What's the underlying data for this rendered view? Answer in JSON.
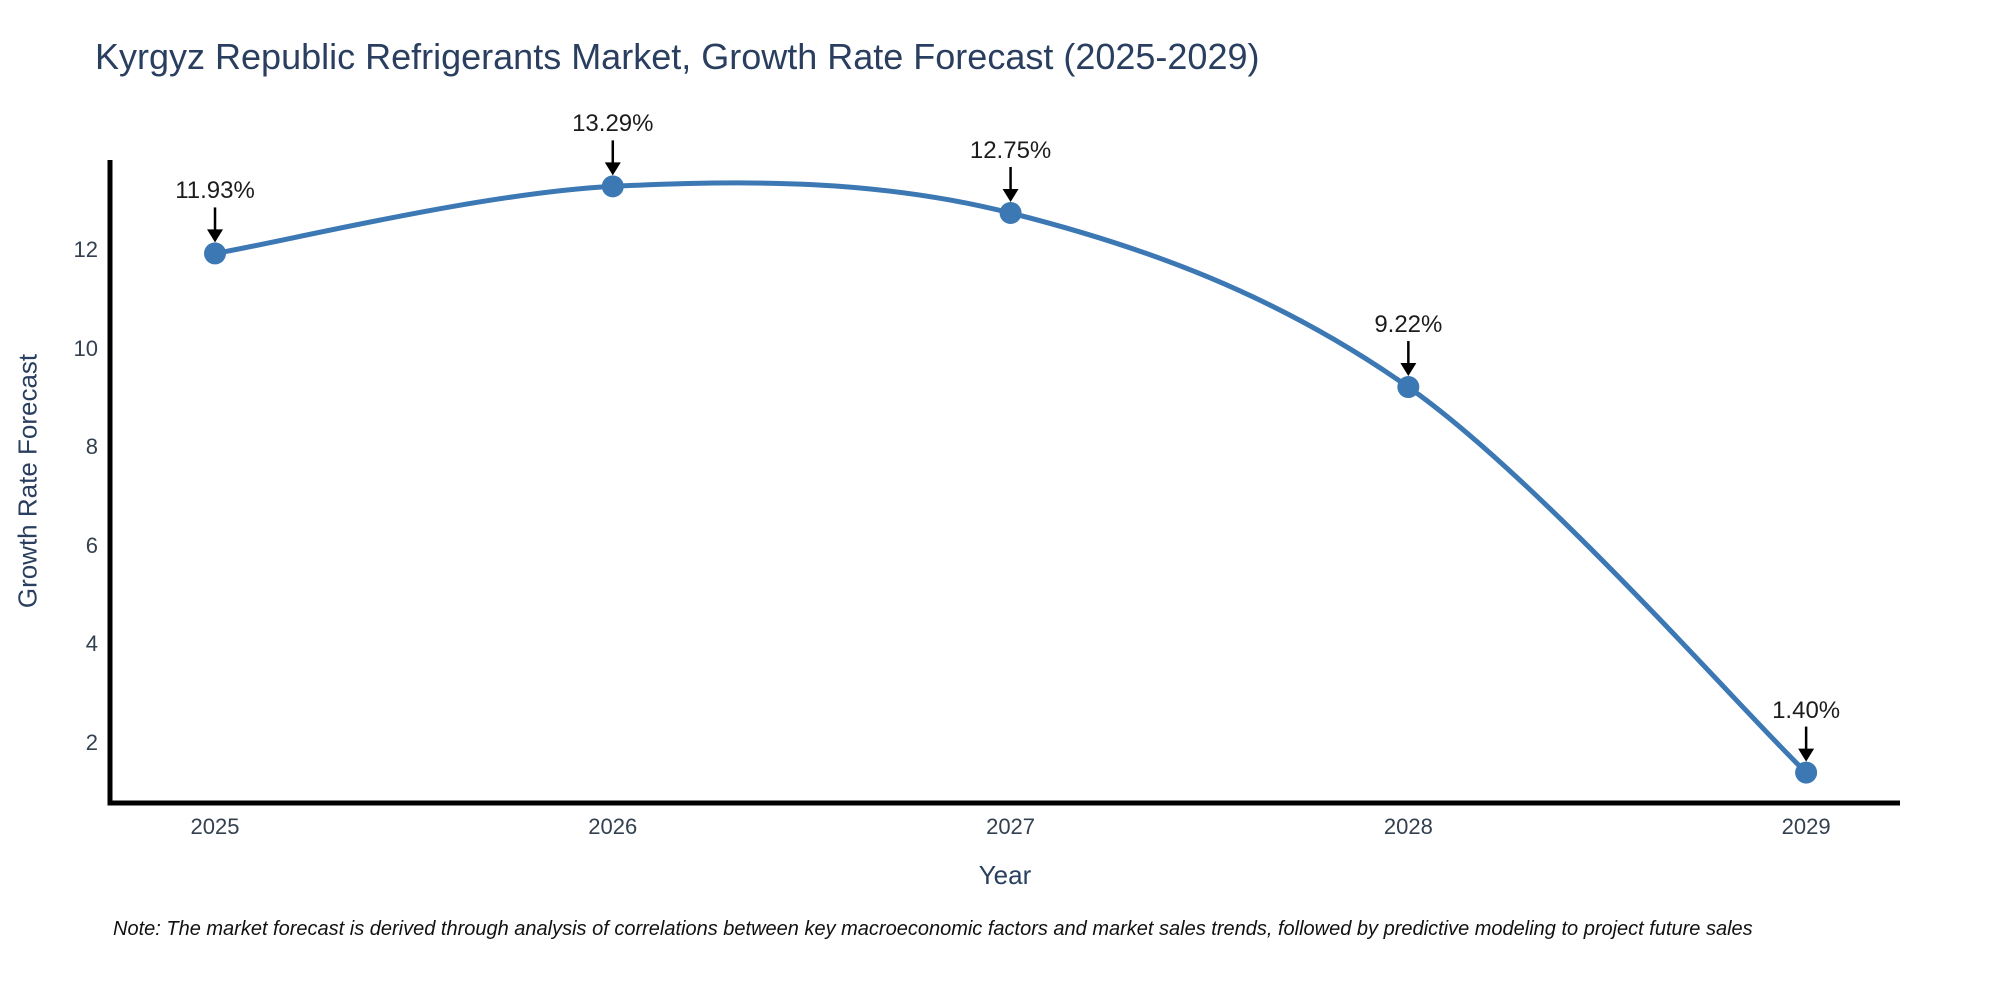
{
  "title": "Kyrgyz Republic Refrigerants Market, Growth Rate Forecast (2025-2029)",
  "note": "Note: The market forecast is derived through analysis of correlations between key macroeconomic factors and market sales trends, followed by predictive modeling to project future sales",
  "colors": {
    "line": "#3c78b4",
    "marker": "#3c78b4",
    "axis_line": "#000000",
    "arrow": "#000000",
    "title_text": "#2a3f5f",
    "axis_title_text": "#2a3f5f",
    "tick_text": "#33404f",
    "annotation_text": "#1c1c1c",
    "background": "#ffffff"
  },
  "chart_data": {
    "type": "line",
    "title": "Kyrgyz Republic Refrigerants Market, Growth Rate Forecast (2025-2029)",
    "xlabel": "Year",
    "ylabel": "Growth Rate Forecast",
    "x": [
      2025,
      2026,
      2027,
      2028,
      2029
    ],
    "y": [
      11.93,
      13.29,
      12.75,
      9.22,
      1.4
    ],
    "point_labels": [
      "11.93%",
      "13.29%",
      "12.75%",
      "9.22%",
      "1.40%"
    ],
    "xticks": [
      2025,
      2026,
      2027,
      2028,
      2029
    ],
    "xtick_labels": [
      "2025",
      "2026",
      "2027",
      "2028",
      "2029"
    ],
    "yticks": [
      2,
      4,
      6,
      8,
      10,
      12
    ],
    "ytick_labels": [
      "2",
      "4",
      "6",
      "8",
      "10",
      "12"
    ],
    "xlim": [
      2024.736,
      2029.236
    ],
    "ylim": [
      0.783,
      13.825
    ],
    "grid": false,
    "legend": "none",
    "line_shape": "spline",
    "marker": "circle",
    "annotations_arrow": "down"
  }
}
